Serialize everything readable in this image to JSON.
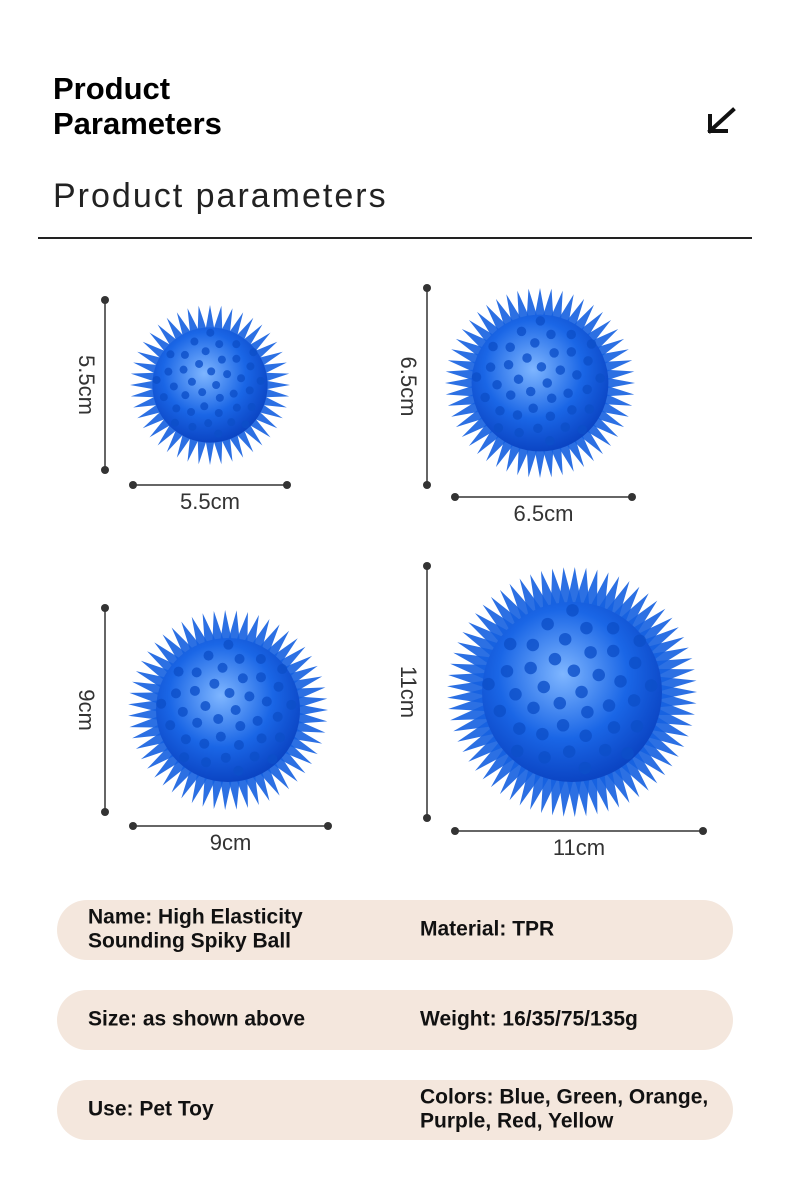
{
  "header": {
    "title_lines": [
      "Product",
      "Parameters"
    ],
    "subtitle": "Product parameters"
  },
  "sizes": [
    {
      "height_label": "5.5cm",
      "width_label": "5.5cm"
    },
    {
      "height_label": "6.5cm",
      "width_label": "6.5cm"
    },
    {
      "height_label": "9cm",
      "width_label": "9cm"
    },
    {
      "height_label": "11cm",
      "width_label": "11cm"
    }
  ],
  "specs": [
    [
      [
        "Name: High Elasticity",
        "Sounding Spiky Ball"
      ],
      [
        "Material: TPR"
      ]
    ],
    [
      [
        "Size: as shown above"
      ],
      [
        "Weight: 16/35/75/135g"
      ]
    ],
    [
      [
        "Use: Pet Toy"
      ],
      [
        "Colors: Blue, Green, Orange,",
        "Purple, Red, Yellow"
      ]
    ]
  ]
}
